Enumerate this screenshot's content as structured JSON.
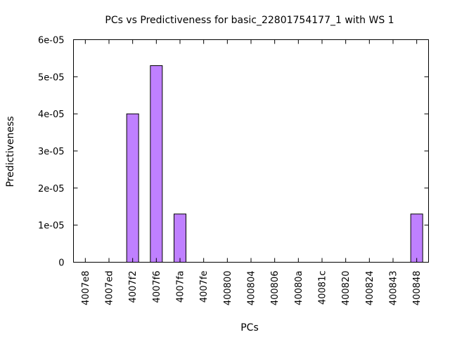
{
  "chart_data": {
    "type": "bar",
    "title": "PCs vs Predictiveness for basic_22801754177_1 with WS 1",
    "xlabel": "PCs",
    "ylabel": "Predictiveness",
    "categories": [
      "4007e8",
      "4007ed",
      "4007f2",
      "4007f6",
      "4007fa",
      "4007fe",
      "400800",
      "400804",
      "400806",
      "40080a",
      "40081c",
      "400820",
      "400824",
      "400843",
      "400848"
    ],
    "values": [
      0,
      0,
      4e-05,
      5.3e-05,
      1.3e-05,
      0,
      0,
      0,
      0,
      0,
      0,
      0,
      0,
      0,
      1.3e-05
    ],
    "ylim": [
      0,
      6e-05
    ],
    "yticks": [
      0,
      1e-05,
      2e-05,
      3e-05,
      4e-05,
      5e-05,
      6e-05
    ],
    "ytick_labels": [
      "0",
      "1e-05",
      "2e-05",
      "3e-05",
      "4e-05",
      "5e-05",
      "6e-05"
    ],
    "grid": false,
    "legend": "none",
    "bar_color": "#bf80ff",
    "bar_edge_color": "#000000"
  }
}
